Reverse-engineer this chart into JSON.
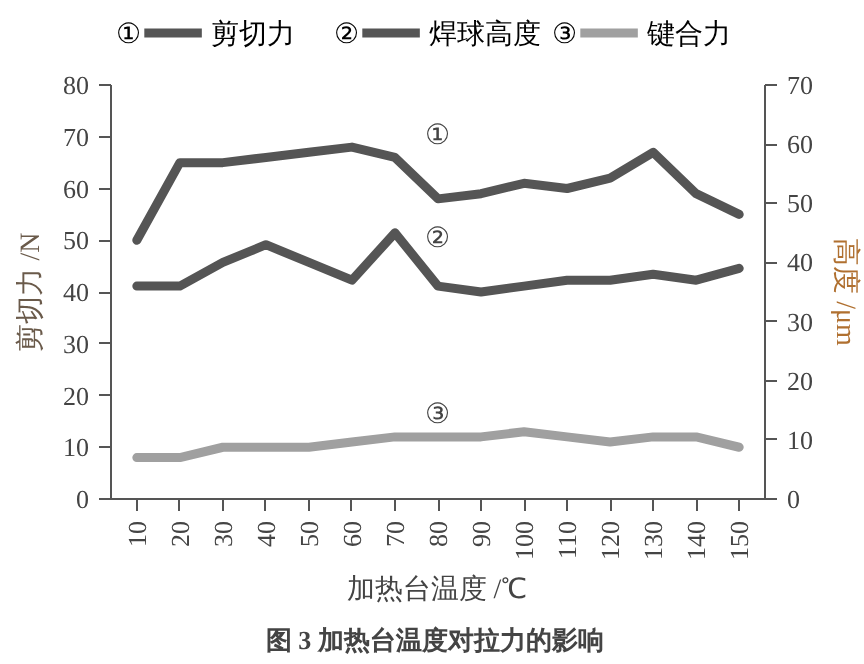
{
  "chart_data": {
    "type": "line",
    "title": "图 3  加热台温度对拉力的影响",
    "xlabel": "加热台温度 /℃",
    "ylabel": "剪切力 /N",
    "y2label": "高度 /μm",
    "categories": [
      "10",
      "20",
      "30",
      "40",
      "50",
      "60",
      "70",
      "80",
      "90",
      "100",
      "110",
      "120",
      "130",
      "140",
      "150"
    ],
    "series": [
      {
        "name": "剪切力",
        "color": "#555555",
        "values": [
          50,
          65,
          65,
          66,
          67,
          68,
          66,
          58,
          59,
          61,
          60,
          62,
          67,
          59,
          55
        ]
      },
      {
        "name": "焊球高度",
        "color": "#555555",
        "axis": "y2",
        "values": [
          36,
          36,
          40,
          43,
          40,
          37,
          45,
          36,
          35,
          36,
          37,
          37,
          38,
          37,
          39
        ]
      },
      {
        "name": "键合力",
        "color": "#a0a0a0",
        "values": [
          8,
          8,
          10,
          10,
          10,
          11,
          12,
          12,
          12,
          13,
          12,
          11,
          12,
          12,
          10
        ]
      }
    ],
    "annotations": [
      {
        "text": "①",
        "x": "80",
        "y": 70
      },
      {
        "text": "②",
        "x": "80",
        "y": 50
      },
      {
        "text": "③",
        "x": "80",
        "y": 16
      }
    ],
    "ylim": [
      0,
      80
    ],
    "yticks": [
      0,
      10,
      20,
      30,
      40,
      50,
      60,
      70,
      80
    ],
    "y2lim": [
      0,
      70
    ],
    "y2ticks": [
      0,
      10,
      20,
      30,
      40,
      50,
      60,
      70
    ],
    "grid": false,
    "legend": "top",
    "marker": "none",
    "line_style": "solid"
  }
}
